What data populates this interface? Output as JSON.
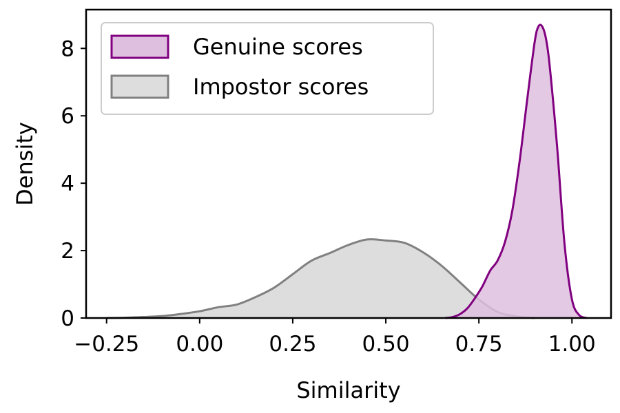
{
  "chart_data": {
    "type": "area",
    "xlabel": "Similarity",
    "ylabel": "Density",
    "xlim": [
      -0.305,
      1.105
    ],
    "ylim": [
      0,
      9.15
    ],
    "xticks": [
      -0.25,
      0.0,
      0.25,
      0.5,
      0.75,
      1.0
    ],
    "xtick_labels": [
      "−0.25",
      "0.00",
      "0.25",
      "0.50",
      "0.75",
      "1.00"
    ],
    "yticks": [
      0,
      2,
      4,
      6,
      8
    ],
    "ytick_labels": [
      "0",
      "2",
      "4",
      "6",
      "8"
    ],
    "grid": false,
    "legend_position": "top-left",
    "series": [
      {
        "name": "Impostor scores",
        "line_color": "#808080",
        "fill_color": "#dddddd",
        "x": [
          -0.25,
          -0.2,
          -0.15,
          -0.1,
          -0.05,
          0.0,
          0.05,
          0.1,
          0.15,
          0.2,
          0.25,
          0.3,
          0.35,
          0.4,
          0.45,
          0.5,
          0.55,
          0.6,
          0.65,
          0.7,
          0.75,
          0.8,
          0.85,
          0.9
        ],
        "y": [
          0.0,
          0.01,
          0.03,
          0.06,
          0.12,
          0.2,
          0.32,
          0.4,
          0.62,
          0.9,
          1.3,
          1.7,
          1.93,
          2.17,
          2.33,
          2.3,
          2.23,
          1.95,
          1.55,
          1.05,
          0.55,
          0.18,
          0.05,
          0.0
        ]
      },
      {
        "name": "Genuine scores",
        "line_color": "#800080",
        "fill_color": "#dfbfdf",
        "x": [
          0.66,
          0.68,
          0.7,
          0.72,
          0.74,
          0.76,
          0.78,
          0.8,
          0.82,
          0.84,
          0.86,
          0.88,
          0.9,
          0.91,
          0.92,
          0.93,
          0.94,
          0.96,
          0.98,
          1.0,
          1.02,
          1.04
        ],
        "y": [
          0.0,
          0.03,
          0.12,
          0.3,
          0.6,
          0.95,
          1.4,
          1.7,
          2.25,
          3.2,
          4.7,
          6.5,
          8.2,
          8.65,
          8.65,
          8.3,
          7.5,
          5.1,
          2.2,
          0.55,
          0.08,
          0.0
        ]
      }
    ]
  }
}
